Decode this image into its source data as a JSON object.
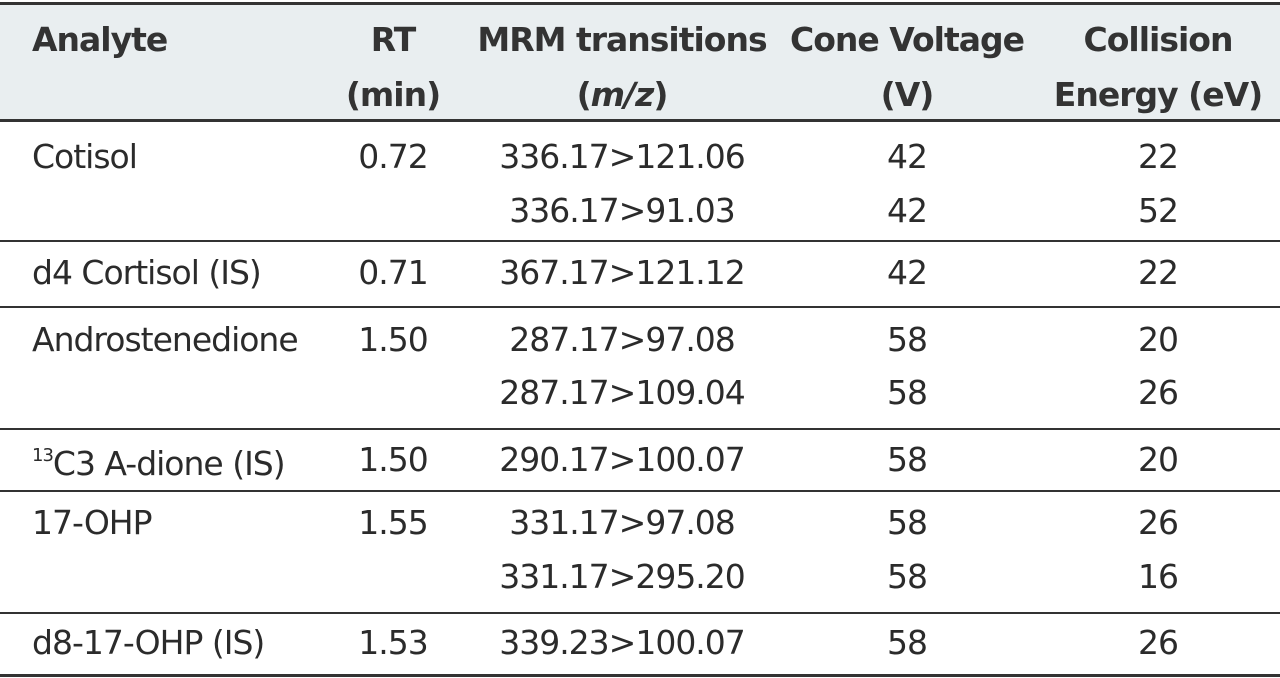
{
  "table": {
    "header": [
      {
        "lines": [
          "Analyte"
        ]
      },
      {
        "lines": [
          "RT",
          "(min)"
        ]
      },
      {
        "lines": [
          "MRM transitions"
        ],
        "open": "(",
        "italic": "m/z",
        "close": ")"
      },
      {
        "lines": [
          "Cone Voltage",
          "(V)"
        ]
      },
      {
        "lines": [
          "Collision",
          "Energy (eV)"
        ]
      }
    ],
    "rows": [
      {
        "analyte": "Cotisol",
        "rt": "0.72",
        "transitions": [
          {
            "mrm": "336.17>121.06",
            "cone": "42",
            "ce": "22"
          },
          {
            "mrm": "336.17>91.03",
            "cone": "42",
            "ce": "52"
          }
        ]
      },
      {
        "analyte": "d4 Cortisol (IS)",
        "rt": "0.71",
        "transitions": [
          {
            "mrm": "367.17>121.12",
            "cone": "42",
            "ce": "22"
          }
        ]
      },
      {
        "analyte": "Androstenedione",
        "rt": "1.50",
        "transitions": [
          {
            "mrm": "287.17>97.08",
            "cone": "58",
            "ce": "20"
          },
          {
            "mrm": "287.17>109.04",
            "cone": "58",
            "ce": "26"
          }
        ]
      },
      {
        "isotope": "13",
        "analyte": "C3 A-dione (IS)",
        "rt": "1.50",
        "transitions": [
          {
            "mrm": "290.17>100.07",
            "cone": "58",
            "ce": "20"
          }
        ]
      },
      {
        "analyte": "17-OHP",
        "rt": "1.55",
        "transitions": [
          {
            "mrm": "331.17>97.08",
            "cone": "58",
            "ce": "26"
          },
          {
            "mrm": "331.17>295.20",
            "cone": "58",
            "ce": "16"
          }
        ]
      },
      {
        "analyte": "d8-17-OHP (IS)",
        "rt": "1.53",
        "transitions": [
          {
            "mrm": "339.23>100.07",
            "cone": "58",
            "ce": "26"
          }
        ]
      }
    ]
  }
}
